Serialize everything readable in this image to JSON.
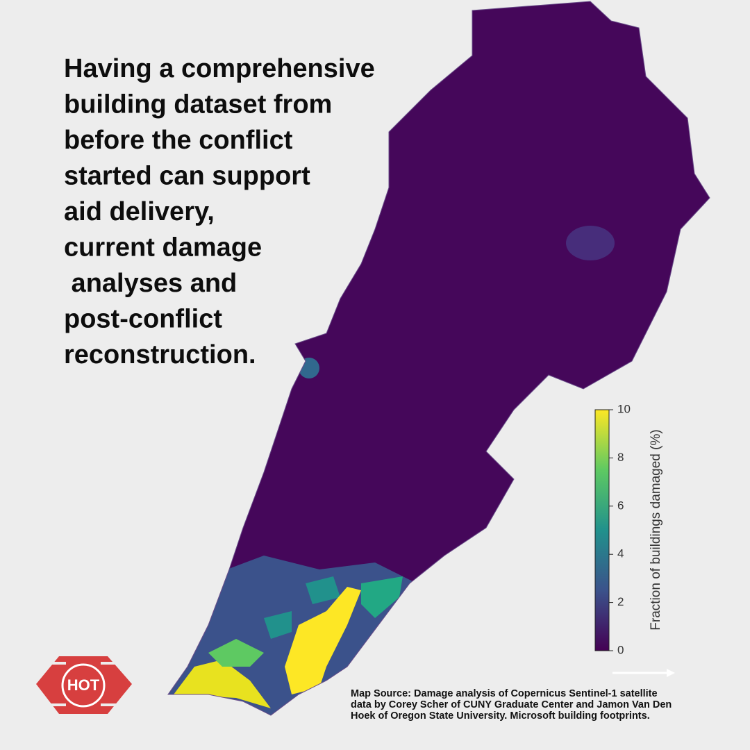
{
  "headline": {
    "lines": [
      "Having a comprehensive",
      "building dataset from",
      "before the conflict",
      "started can support",
      "aid delivery,",
      "current damage",
      " analyses and",
      "post-conflict",
      "reconstruction."
    ]
  },
  "colorbar": {
    "label": "Fraction of buildings damaged (%)",
    "lim": [
      0,
      10
    ],
    "ticks": [
      0,
      2,
      4,
      6,
      8,
      10
    ]
  },
  "source": {
    "lines": [
      "Map Source: Damage analysis of Copernicus Sentinel-1 satellite",
      "data by Corey Scher of CUNY Graduate Center and Jamon Van Den",
      "Hoek of Oregon State University. Microsoft building footprints."
    ]
  },
  "logo": {
    "text": "HOT"
  }
}
